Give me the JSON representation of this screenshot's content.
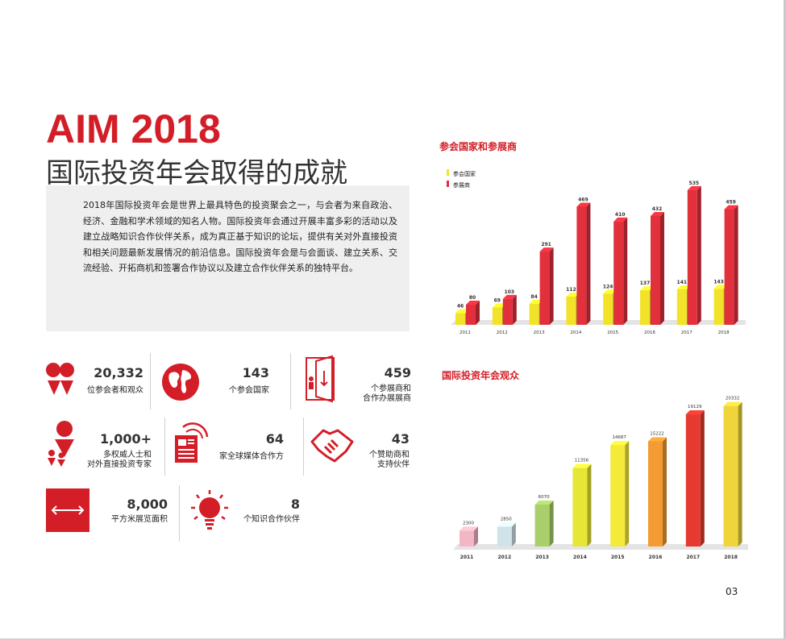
{
  "title": {
    "main": "AIM 2018",
    "sub": "国际投资年会取得的成就"
  },
  "intro": "2018年国际投资年会是世界上最具特色的投资聚会之一，与会者为来自政治、经济、金融和学术领域的知名人物。国际投资年会通过开展丰富多彩的活动以及建立战略知识合作伙伴关系，成为真正基于知识的论坛，提供有关对外直接投资和相关问题最新发展情况的前沿信息。国际投资年会是与会面谈、建立关系、交流经验、开拓商机和签署合作协议以及建立合作伙伴关系的独特平台。",
  "stats": {
    "participants": {
      "value": "20,332",
      "label": "位参会者和观众",
      "icon": "people-icon"
    },
    "countries": {
      "value": "143",
      "label": "个参会国家",
      "icon": "globe-icon"
    },
    "exhibitors": {
      "value": "459",
      "label1": "个参展商和",
      "label2": "合作办展展商",
      "icon": "door-icon"
    },
    "experts": {
      "value": "1,000+",
      "label1": "多权威人士和",
      "label2": "对外直接投资专家",
      "icon": "group-icon"
    },
    "media": {
      "value": "64",
      "label": "家全球媒体合作方",
      "icon": "newspaper-icon"
    },
    "sponsors": {
      "value": "43",
      "label1": "个赞助商和",
      "label2": "支持伙伴",
      "icon": "handshake-icon"
    },
    "area": {
      "value": "8,000",
      "label": "平方米展览面积",
      "icon": "area-icon"
    },
    "knowledge": {
      "value": "8",
      "label": "个知识合作伙伴",
      "icon": "lightbulb-icon"
    }
  },
  "page_number": "03",
  "colors": {
    "accent": "#d41e27",
    "yellow": "#f2e32a",
    "red": "#e2303d"
  },
  "chart_data": [
    {
      "type": "bar",
      "title": "参会国家和参展商",
      "categories": [
        "2011",
        "2012",
        "2013",
        "2014",
        "2015",
        "2016",
        "2017",
        "2018"
      ],
      "series": [
        {
          "name": "参会国家",
          "values": [
            46,
            69,
            84,
            112,
            124,
            137,
            141,
            143
          ],
          "color": "#f2e32a"
        },
        {
          "name": "参展商",
          "values": [
            80,
            103,
            291,
            469,
            410,
            432,
            535,
            459
          ],
          "color": "#e2303d"
        }
      ],
      "ylim": [
        0,
        560
      ],
      "legend": "top-left"
    },
    {
      "type": "bar",
      "title": "国际投资年会观众",
      "categories": [
        "2011",
        "2012",
        "2013",
        "2014",
        "2015",
        "2016",
        "2017",
        "2018"
      ],
      "values": [
        2300,
        2850,
        6070,
        11356,
        14687,
        15222,
        19129,
        20332
      ],
      "colors": [
        "#f3b6c4",
        "#cfe3e8",
        "#a9cf6a",
        "#e6e636",
        "#f4ea3a",
        "#f39c33",
        "#e63a30",
        "#efd43a"
      ],
      "ylim": [
        0,
        21000
      ]
    }
  ]
}
